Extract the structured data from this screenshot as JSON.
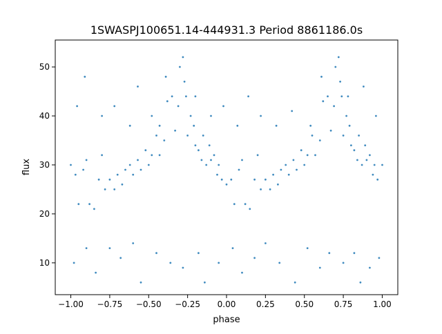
{
  "chart_data": {
    "type": "scatter",
    "title": "1SWASPJ100651.14-444931.3 Period 8861186.0s",
    "xlabel": "phase",
    "ylabel": "flux",
    "xlim": [
      -1.1,
      1.1
    ],
    "ylim": [
      3.5,
      55.5
    ],
    "x_ticks": [
      -1.0,
      -0.75,
      -0.5,
      -0.25,
      0.0,
      0.25,
      0.5,
      0.75,
      1.0
    ],
    "x_tick_labels": [
      "−1.00",
      "−0.75",
      "−0.50",
      "−0.25",
      "0.00",
      "0.25",
      "0.50",
      "0.75",
      "1.00"
    ],
    "y_ticks": [
      10,
      20,
      30,
      40,
      50
    ],
    "y_tick_labels": [
      "10",
      "20",
      "30",
      "40",
      "50"
    ],
    "grid": false,
    "marker_color": "#1f77b4",
    "series": [
      {
        "points": [
          [
            -1.0,
            30
          ],
          [
            -0.97,
            28
          ],
          [
            -0.95,
            22
          ],
          [
            -0.92,
            29
          ],
          [
            -0.9,
            31
          ],
          [
            -0.88,
            22
          ],
          [
            -0.85,
            21
          ],
          [
            -0.82,
            27
          ],
          [
            -0.8,
            32
          ],
          [
            -0.78,
            25
          ],
          [
            -0.75,
            27
          ],
          [
            -0.72,
            25
          ],
          [
            -0.7,
            28
          ],
          [
            -0.67,
            26
          ],
          [
            -0.65,
            29
          ],
          [
            -0.62,
            30
          ],
          [
            -0.6,
            28
          ],
          [
            -0.57,
            31
          ],
          [
            -0.55,
            29
          ],
          [
            -0.52,
            33
          ],
          [
            -0.5,
            30
          ],
          [
            -0.48,
            32
          ],
          [
            -0.45,
            36
          ],
          [
            -0.43,
            32
          ],
          [
            -0.4,
            35
          ],
          [
            -0.39,
            48
          ],
          [
            -0.38,
            43
          ],
          [
            -0.35,
            44
          ],
          [
            -0.33,
            37
          ],
          [
            -0.31,
            42
          ],
          [
            -0.3,
            50
          ],
          [
            -0.28,
            52
          ],
          [
            -0.27,
            47
          ],
          [
            -0.26,
            44
          ],
          [
            -0.25,
            36
          ],
          [
            -0.23,
            40
          ],
          [
            -0.21,
            38
          ],
          [
            -0.2,
            34
          ],
          [
            -0.18,
            33
          ],
          [
            -0.16,
            31
          ],
          [
            -0.15,
            36
          ],
          [
            -0.13,
            30
          ],
          [
            -0.11,
            34
          ],
          [
            -0.1,
            31
          ],
          [
            -0.08,
            32
          ],
          [
            -0.06,
            28
          ],
          [
            -0.05,
            30
          ],
          [
            -0.03,
            27
          ],
          [
            0.0,
            26
          ],
          [
            0.03,
            27
          ],
          [
            0.05,
            22
          ],
          [
            0.08,
            29
          ],
          [
            0.1,
            31
          ],
          [
            0.12,
            22
          ],
          [
            0.15,
            21
          ],
          [
            0.18,
            27
          ],
          [
            0.2,
            32
          ],
          [
            0.22,
            25
          ],
          [
            0.25,
            27
          ],
          [
            0.28,
            25
          ],
          [
            0.3,
            28
          ],
          [
            0.33,
            26
          ],
          [
            0.35,
            29
          ],
          [
            0.38,
            30
          ],
          [
            0.4,
            28
          ],
          [
            0.43,
            31
          ],
          [
            0.45,
            29
          ],
          [
            0.48,
            33
          ],
          [
            0.5,
            30
          ],
          [
            0.52,
            32
          ],
          [
            0.55,
            36
          ],
          [
            0.57,
            32
          ],
          [
            0.6,
            35
          ],
          [
            0.61,
            48
          ],
          [
            0.62,
            43
          ],
          [
            0.65,
            44
          ],
          [
            0.67,
            37
          ],
          [
            0.69,
            42
          ],
          [
            0.7,
            50
          ],
          [
            0.72,
            52
          ],
          [
            0.73,
            47
          ],
          [
            0.74,
            44
          ],
          [
            0.75,
            36
          ],
          [
            0.77,
            40
          ],
          [
            0.79,
            38
          ],
          [
            0.8,
            34
          ],
          [
            0.82,
            33
          ],
          [
            0.84,
            31
          ],
          [
            0.85,
            36
          ],
          [
            0.87,
            30
          ],
          [
            0.89,
            34
          ],
          [
            0.9,
            31
          ],
          [
            0.92,
            32
          ],
          [
            0.94,
            28
          ],
          [
            0.95,
            30
          ],
          [
            0.97,
            27
          ],
          [
            1.0,
            30
          ],
          [
            -0.98,
            10
          ],
          [
            -0.9,
            13
          ],
          [
            -0.84,
            8
          ],
          [
            -0.75,
            13
          ],
          [
            -0.68,
            11
          ],
          [
            -0.6,
            14
          ],
          [
            -0.55,
            6
          ],
          [
            -0.45,
            12
          ],
          [
            -0.36,
            10
          ],
          [
            -0.28,
            9
          ],
          [
            -0.18,
            12
          ],
          [
            -0.14,
            6
          ],
          [
            -0.05,
            10
          ],
          [
            0.04,
            13
          ],
          [
            0.1,
            8
          ],
          [
            0.18,
            11
          ],
          [
            0.25,
            14
          ],
          [
            0.34,
            10
          ],
          [
            0.44,
            6
          ],
          [
            0.52,
            13
          ],
          [
            0.6,
            9
          ],
          [
            0.66,
            12
          ],
          [
            0.75,
            10
          ],
          [
            0.82,
            12
          ],
          [
            0.86,
            6
          ],
          [
            0.92,
            9
          ],
          [
            0.98,
            11
          ],
          [
            -0.96,
            42
          ],
          [
            -0.91,
            48
          ],
          [
            -0.8,
            40
          ],
          [
            -0.72,
            42
          ],
          [
            -0.62,
            38
          ],
          [
            -0.57,
            46
          ],
          [
            -0.48,
            40
          ],
          [
            -0.43,
            38
          ],
          [
            -0.2,
            44
          ],
          [
            -0.1,
            40
          ],
          [
            -0.02,
            42
          ],
          [
            0.07,
            38
          ],
          [
            0.14,
            44
          ],
          [
            0.22,
            40
          ],
          [
            0.32,
            38
          ],
          [
            0.42,
            41
          ],
          [
            0.54,
            38
          ],
          [
            0.78,
            44
          ],
          [
            0.88,
            46
          ],
          [
            0.96,
            40
          ]
        ]
      }
    ]
  }
}
